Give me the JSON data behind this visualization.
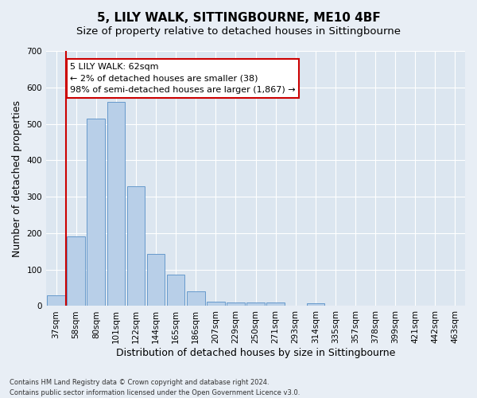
{
  "title": "5, LILY WALK, SITTINGBOURNE, ME10 4BF",
  "subtitle": "Size of property relative to detached houses in Sittingbourne",
  "xlabel": "Distribution of detached houses by size in Sittingbourne",
  "ylabel": "Number of detached properties",
  "categories": [
    "37sqm",
    "58sqm",
    "80sqm",
    "101sqm",
    "122sqm",
    "144sqm",
    "165sqm",
    "186sqm",
    "207sqm",
    "229sqm",
    "250sqm",
    "271sqm",
    "293sqm",
    "314sqm",
    "335sqm",
    "357sqm",
    "378sqm",
    "399sqm",
    "421sqm",
    "442sqm",
    "463sqm"
  ],
  "values": [
    30,
    190,
    515,
    560,
    328,
    143,
    87,
    40,
    13,
    10,
    9,
    10,
    0,
    7,
    0,
    0,
    0,
    0,
    0,
    0,
    0
  ],
  "bar_color": "#b8cfe8",
  "bar_edge_color": "#6699cc",
  "vline_x": 0.5,
  "vline_color": "#cc0000",
  "annotation_text": "5 LILY WALK: 62sqm\n← 2% of detached houses are smaller (38)\n98% of semi-detached houses are larger (1,867) →",
  "annotation_box_color": "#ffffff",
  "annotation_box_edge": "#cc0000",
  "ylim": [
    0,
    700
  ],
  "yticks": [
    0,
    100,
    200,
    300,
    400,
    500,
    600,
    700
  ],
  "background_color": "#e8eef5",
  "plot_bg_color": "#dce6f0",
  "footer_line1": "Contains HM Land Registry data © Crown copyright and database right 2024.",
  "footer_line2": "Contains public sector information licensed under the Open Government Licence v3.0.",
  "title_fontsize": 11,
  "subtitle_fontsize": 9.5,
  "xlabel_fontsize": 9,
  "ylabel_fontsize": 9,
  "tick_fontsize": 7.5,
  "annotation_fontsize": 8
}
